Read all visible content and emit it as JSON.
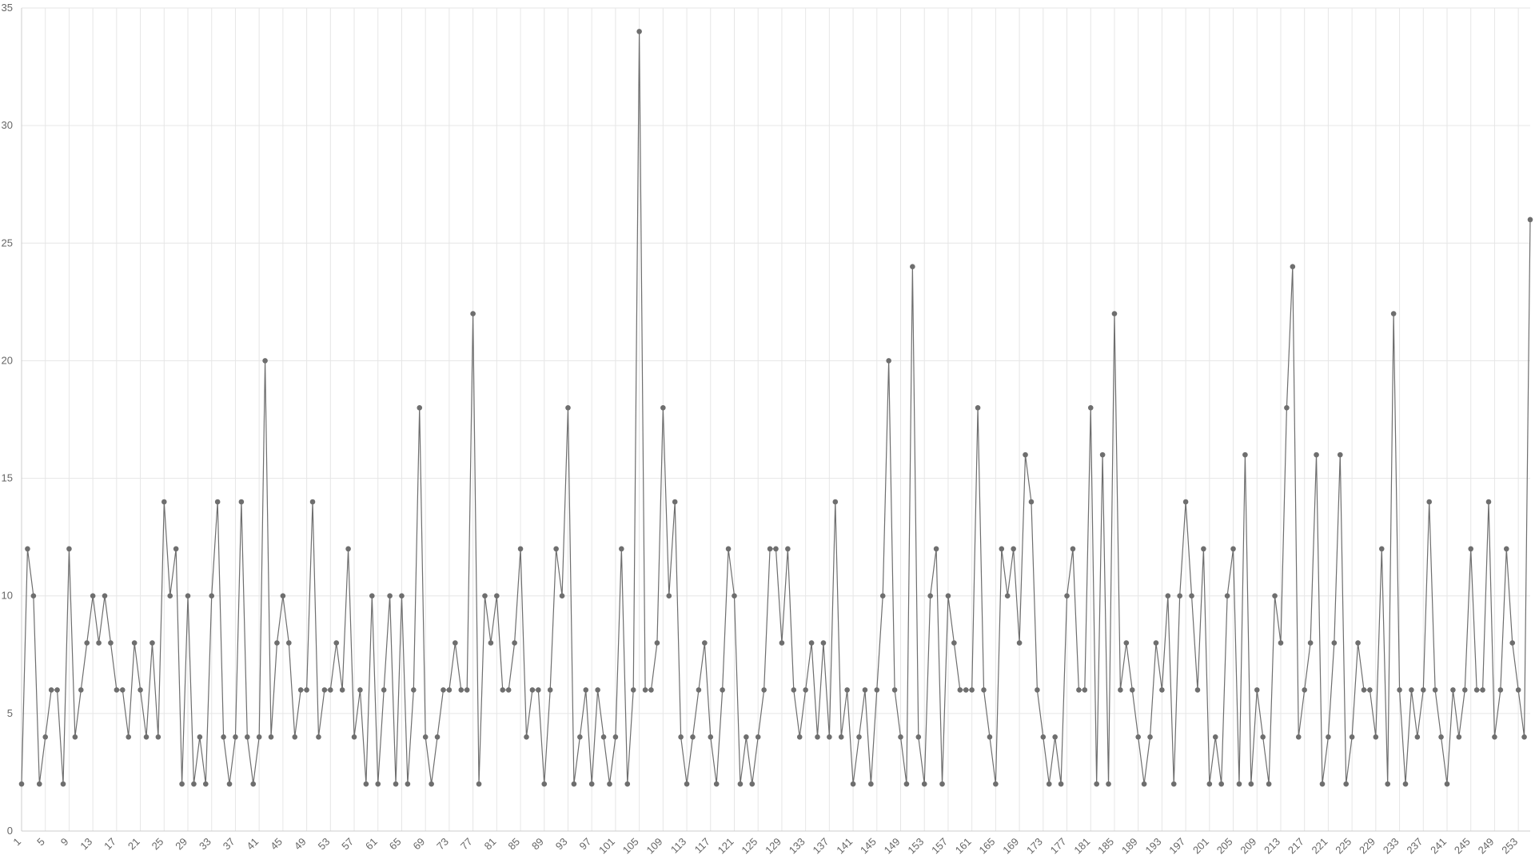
{
  "chart_data": {
    "type": "line",
    "color": "#6e6e6e",
    "grid": true,
    "x": [
      1,
      2,
      3,
      4,
      5,
      6,
      7,
      8,
      9,
      10,
      11,
      12,
      13,
      14,
      15,
      16,
      17,
      18,
      19,
      20,
      21,
      22,
      23,
      24,
      25,
      26,
      27,
      28,
      29,
      30,
      31,
      32,
      33,
      34,
      35,
      36,
      37,
      38,
      39,
      40,
      41,
      42,
      43,
      44,
      45,
      46,
      47,
      48,
      49,
      50,
      51,
      52,
      53,
      54,
      55,
      56,
      57,
      58,
      59,
      60,
      61,
      62,
      63,
      64,
      65,
      66,
      67,
      68,
      69,
      70,
      71,
      72,
      73,
      74,
      75,
      76,
      77,
      78,
      79,
      80,
      81,
      82,
      83,
      84,
      85,
      86,
      87,
      88,
      89,
      90,
      91,
      92,
      93,
      94,
      95,
      96,
      97,
      98,
      99,
      100,
      101,
      102,
      103,
      104,
      105,
      106,
      107,
      108,
      109,
      110,
      111,
      112,
      113,
      114,
      115,
      116,
      117,
      118,
      119,
      120,
      121,
      122,
      123,
      124,
      125,
      126,
      127,
      128,
      129,
      130,
      131,
      132,
      133,
      134,
      135,
      136,
      137,
      138,
      139,
      140,
      141,
      142,
      143,
      144,
      145,
      146,
      147,
      148,
      149,
      150,
      151,
      152,
      153,
      154,
      155,
      156,
      157,
      158,
      159,
      160,
      161,
      162,
      163,
      164,
      165,
      166,
      167,
      168,
      169,
      170,
      171,
      172,
      173,
      174,
      175,
      176,
      177,
      178,
      179,
      180,
      181,
      182,
      183,
      184,
      185,
      186,
      187,
      188,
      189,
      190,
      191,
      192,
      193,
      194,
      195,
      196,
      197,
      198,
      199,
      200,
      201,
      202,
      203,
      204,
      205,
      206,
      207,
      208,
      209,
      210,
      211,
      212,
      213,
      214,
      215,
      216,
      217,
      218,
      219,
      220,
      221,
      222,
      223,
      224,
      225,
      226,
      227,
      228,
      229,
      230,
      231,
      232,
      233,
      234,
      235,
      236,
      237,
      238,
      239,
      240,
      241,
      242,
      243,
      244,
      245,
      246,
      247,
      248,
      249,
      250,
      251,
      252,
      253,
      254,
      255
    ],
    "values": [
      2,
      12,
      10,
      2,
      4,
      6,
      6,
      2,
      12,
      4,
      6,
      8,
      10,
      8,
      10,
      8,
      6,
      6,
      4,
      8,
      6,
      4,
      8,
      4,
      14,
      10,
      12,
      2,
      10,
      2,
      4,
      2,
      10,
      14,
      4,
      2,
      4,
      14,
      4,
      2,
      4,
      20,
      4,
      8,
      10,
      8,
      4,
      6,
      6,
      14,
      4,
      6,
      6,
      8,
      6,
      12,
      4,
      6,
      2,
      10,
      2,
      6,
      10,
      2,
      10,
      2,
      6,
      18,
      4,
      2,
      4,
      6,
      6,
      8,
      6,
      6,
      22,
      2,
      10,
      8,
      10,
      6,
      6,
      8,
      12,
      4,
      6,
      6,
      2,
      6,
      12,
      10,
      18,
      2,
      4,
      6,
      2,
      6,
      4,
      2,
      4,
      12,
      2,
      6,
      34,
      6,
      6,
      8,
      18,
      10,
      14,
      4,
      2,
      4,
      6,
      8,
      4,
      2,
      6,
      12,
      10,
      2,
      4,
      2,
      4,
      6,
      12,
      12,
      8,
      12,
      6,
      4,
      6,
      8,
      4,
      8,
      4,
      14,
      4,
      6,
      2,
      4,
      6,
      2,
      6,
      10,
      20,
      6,
      4,
      2,
      24,
      4,
      2,
      10,
      12,
      2,
      10,
      8,
      6,
      6,
      6,
      18,
      6,
      4,
      2,
      12,
      10,
      12,
      8,
      16,
      14,
      6,
      4,
      2,
      4,
      2,
      10,
      12,
      6,
      6,
      18,
      2,
      16,
      2,
      22,
      6,
      8,
      6,
      4,
      2,
      4,
      8,
      6,
      10,
      2,
      10,
      14,
      10,
      6,
      12,
      2,
      4,
      2,
      10,
      12,
      2,
      16,
      2,
      6,
      4,
      2,
      10,
      8,
      18,
      24,
      4,
      6,
      8,
      16,
      2,
      4,
      8,
      16,
      2,
      4,
      8,
      6,
      6,
      4,
      12,
      2,
      22,
      6,
      2,
      6,
      4,
      6,
      14,
      6,
      4,
      2,
      6,
      4,
      6,
      12,
      6,
      6,
      14,
      4,
      6,
      12,
      8,
      6,
      4,
      26
    ],
    "xlim": [
      1,
      255
    ],
    "xticks": [
      1,
      5,
      9,
      13,
      17,
      21,
      25,
      29,
      33,
      37,
      41,
      45,
      49,
      53,
      57,
      61,
      65,
      69,
      73,
      77,
      81,
      85,
      89,
      93,
      97,
      101,
      105,
      109,
      113,
      117,
      121,
      125,
      129,
      133,
      137,
      141,
      145,
      149,
      153,
      157,
      161,
      165,
      169,
      173,
      177,
      181,
      185,
      189,
      193,
      197,
      201,
      205,
      209,
      213,
      217,
      221,
      225,
      229,
      233,
      237,
      241,
      245,
      249,
      253
    ],
    "ylim": [
      0,
      35
    ],
    "yticks": [
      0,
      5,
      10,
      15,
      20,
      25,
      30,
      35
    ]
  }
}
